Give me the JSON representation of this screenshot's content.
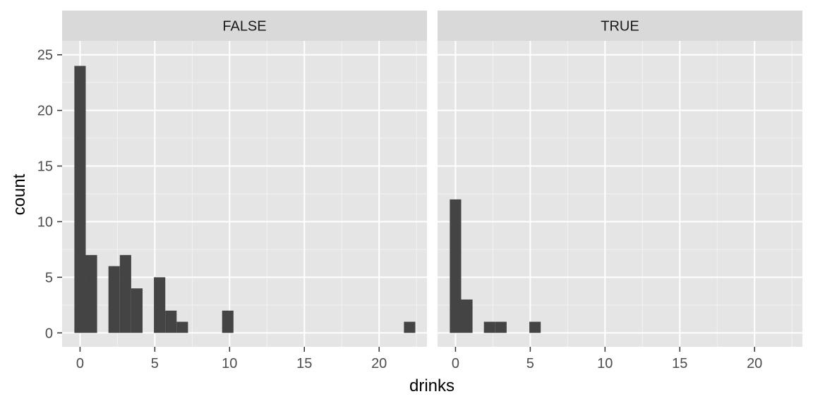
{
  "chart_data": {
    "type": "bar",
    "chart_kind": "faceted histogram",
    "xlabel": "drinks",
    "ylabel": "count",
    "xlim": [
      -1.2,
      23.2
    ],
    "ylim": [
      -1.25,
      26.25
    ],
    "x_ticks": [
      0,
      5,
      10,
      15,
      20
    ],
    "y_ticks": [
      0,
      5,
      10,
      15,
      20,
      25
    ],
    "bin_width": 0.76,
    "grid": true,
    "bar_color": "#444444",
    "panel_background": "#e5e5e5",
    "strip_background": "#d9d9d9",
    "facets": [
      {
        "label": "FALSE",
        "bins": [
          {
            "x": 0,
            "count": 24
          },
          {
            "x": 0.76,
            "count": 7
          },
          {
            "x": 2.28,
            "count": 6
          },
          {
            "x": 3.04,
            "count": 7
          },
          {
            "x": 3.8,
            "count": 4
          },
          {
            "x": 5.32,
            "count": 5
          },
          {
            "x": 6.08,
            "count": 2
          },
          {
            "x": 6.84,
            "count": 1
          },
          {
            "x": 9.88,
            "count": 2
          },
          {
            "x": 22.04,
            "count": 1
          }
        ]
      },
      {
        "label": "TRUE",
        "bins": [
          {
            "x": 0,
            "count": 12
          },
          {
            "x": 0.76,
            "count": 3
          },
          {
            "x": 2.28,
            "count": 1
          },
          {
            "x": 3.04,
            "count": 1
          },
          {
            "x": 5.32,
            "count": 1
          }
        ]
      }
    ]
  }
}
